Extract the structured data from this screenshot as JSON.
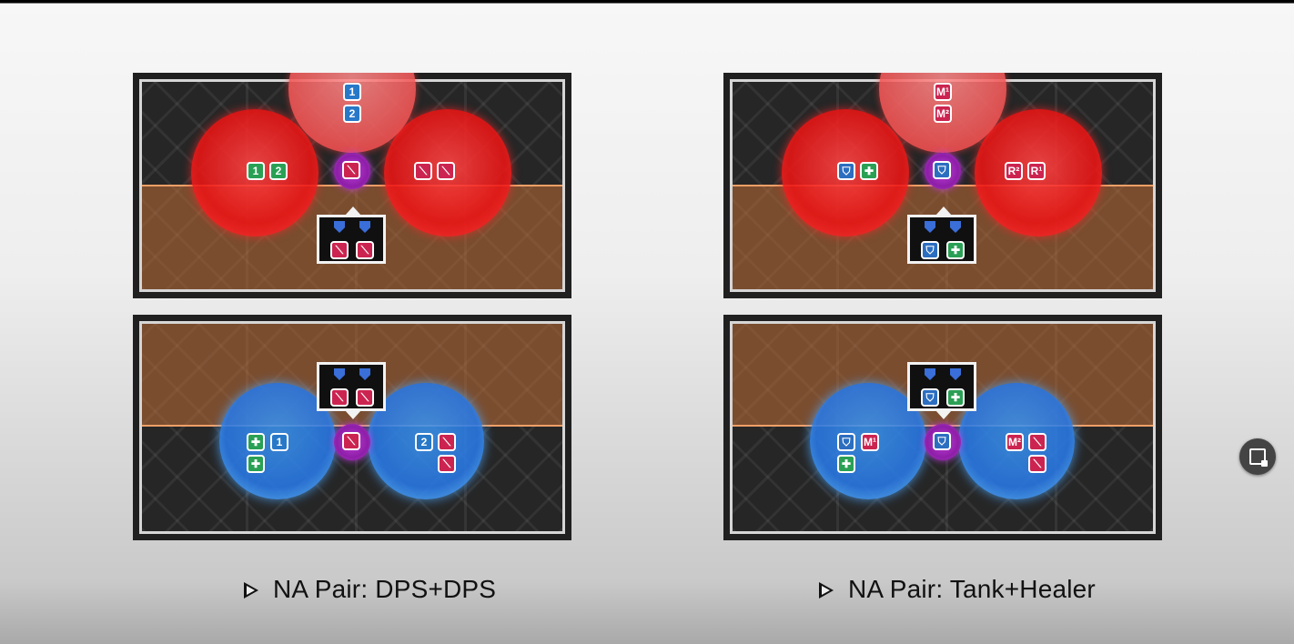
{
  "captions": {
    "left": "NA Pair: DPS+DPS",
    "right": "NA Pair: Tank+Healer"
  },
  "markers": {
    "one": "1",
    "two": "2",
    "m1": "M¹",
    "m2": "M²",
    "r1": "R¹",
    "r2": "R²",
    "dps": "⟍",
    "tank": "⛉",
    "healer": "✚"
  },
  "colors": {
    "stack_red": "#eb1414",
    "spread_blue": "#2878e6",
    "band_orange": "#cd7337",
    "dps_marker": "#cc2450",
    "healer_marker": "#2aa055",
    "number_marker": "#2878c8",
    "orb_purple": "#8e1ea8"
  },
  "icons": {
    "dps": "sword-icon",
    "tank": "shield-icon",
    "healer": "cross-icon",
    "expand": "picture-in-picture-icon"
  }
}
